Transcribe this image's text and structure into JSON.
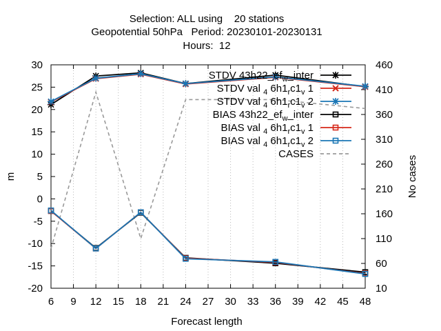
{
  "chart_data": {
    "type": "line",
    "title_lines": [
      "Selection: ALL using    20 stations",
      "Geopotential 50hPa   Period: 20230101-20230131",
      "Hours:  12"
    ],
    "xlabel": "Forecast length",
    "ylabel": "m",
    "y2label": "No cases",
    "xlim": [
      6,
      48
    ],
    "ylim": [
      -20,
      30
    ],
    "y2lim": [
      10,
      460
    ],
    "xticks": [
      6,
      9,
      12,
      15,
      18,
      21,
      24,
      27,
      30,
      33,
      36,
      39,
      42,
      45,
      48
    ],
    "yticks": [
      -20,
      -15,
      -10,
      -5,
      0,
      5,
      10,
      15,
      20,
      25,
      30
    ],
    "y2ticks": [
      10,
      60,
      110,
      160,
      210,
      260,
      310,
      360,
      410,
      460
    ],
    "grid": "x-only dotted",
    "legend_position": "top-right",
    "x": [
      6,
      12,
      18,
      24,
      36,
      48
    ],
    "series": [
      {
        "name_parts": [
          "STDV 43h22",
          "ef",
          "w",
          "inter"
        ],
        "color": "#000000",
        "marker": "star",
        "axis": "y",
        "values": [
          21.1,
          27.5,
          28.2,
          25.8,
          27.7,
          25.1
        ]
      },
      {
        "name_parts": [
          "STDV val",
          "4",
          "6h1",
          "r",
          "c1",
          "v",
          "1"
        ],
        "color": "#d62718",
        "marker": "x",
        "axis": "y",
        "values": [
          21.7,
          26.9,
          27.9,
          25.7,
          27.2,
          25.1
        ]
      },
      {
        "name_parts": [
          "STDV val",
          "4",
          "6h1",
          "r",
          "c1",
          "v",
          "2"
        ],
        "color": "#1a76b5",
        "marker": "star",
        "axis": "y",
        "values": [
          21.8,
          27.0,
          28.0,
          25.8,
          27.3,
          25.2
        ]
      },
      {
        "name_parts": [
          "BIAS 43h22",
          "ef",
          "w",
          "inter"
        ],
        "color": "#000000",
        "marker": "square",
        "axis": "y",
        "values": [
          -2.7,
          -11.0,
          -3.1,
          -13.2,
          -14.4,
          -16.4
        ]
      },
      {
        "name_parts": [
          "BIAS val",
          "4",
          "6h1",
          "r",
          "c1",
          "v",
          "1"
        ],
        "color": "#d62718",
        "marker": "square",
        "axis": "y",
        "values": [
          -2.7,
          -11.1,
          -3.0,
          -13.3,
          -14.2,
          -16.7
        ]
      },
      {
        "name_parts": [
          "BIAS val",
          "4",
          "6h1",
          "r",
          "c1",
          "v",
          "2"
        ],
        "color": "#1a76b5",
        "marker": "square",
        "axis": "y",
        "values": [
          -2.6,
          -11.1,
          -3.0,
          -13.4,
          -14.1,
          -16.8
        ]
      },
      {
        "name_parts": [
          "CASES"
        ],
        "color": "#999999",
        "marker": "none",
        "dashed": true,
        "axis": "y2",
        "values": [
          90,
          405,
          110,
          390,
          390,
          372
        ]
      }
    ]
  }
}
